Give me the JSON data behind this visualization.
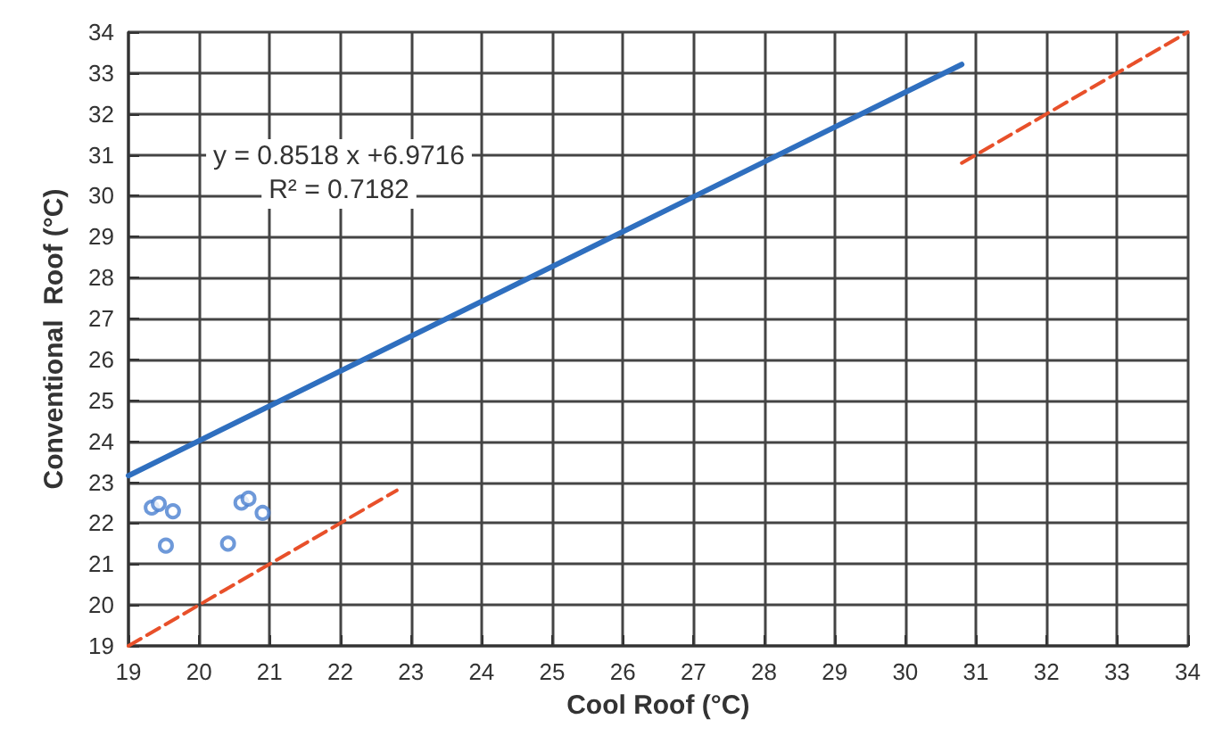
{
  "chart_data": {
    "type": "scatter",
    "xlabel": "Cool Roof (°C)",
    "ylabel": "Conventional  Roof (°C)",
    "xlim": [
      19,
      34
    ],
    "ylim": [
      19,
      34
    ],
    "xticks": [
      19,
      20,
      21,
      22,
      23,
      24,
      25,
      26,
      27,
      28,
      29,
      30,
      31,
      32,
      33,
      34
    ],
    "yticks": [
      19,
      20,
      21,
      22,
      23,
      24,
      25,
      26,
      27,
      28,
      29,
      30,
      31,
      32,
      33,
      34
    ],
    "grid": true,
    "annotations": [
      "y = 0.8518 x +6.9716",
      "R² = 0.7182"
    ],
    "series": [
      {
        "color": "#4a7fd0",
        "marker": "circle",
        "x": [
          19.33,
          19.43,
          19.63,
          19.53,
          20.41,
          20.6,
          20.7,
          20.9
        ],
        "values": [
          22.38,
          22.47,
          22.29,
          21.45,
          21.5,
          22.5,
          22.6,
          22.25
        ]
      },
      {
        "type": "line",
        "color": "#2f6fbf",
        "marker": "none",
        "line_style": "solid",
        "x": [
          19,
          30.8
        ],
        "values": [
          23.16,
          33.21
        ]
      },
      {
        "type": "line",
        "color": "#e8502a",
        "marker": "none",
        "line_style": "dashed",
        "x": [
          19,
          22.8,
          30.8,
          34
        ],
        "values": [
          19,
          22.8,
          30.8,
          34
        ]
      }
    ]
  }
}
